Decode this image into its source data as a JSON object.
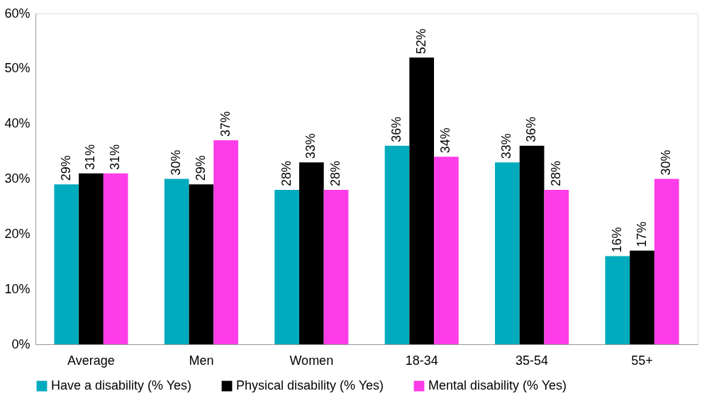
{
  "chart_data": {
    "type": "bar",
    "categories": [
      "Average",
      "Men",
      "Women",
      "18-34",
      "35-54",
      "55+"
    ],
    "series": [
      {
        "name": "Have a disability (% Yes)",
        "color": "#00abbd",
        "values": [
          29,
          30,
          28,
          36,
          33,
          16
        ],
        "value_labels": [
          "29%",
          "30%",
          "28%",
          "36%",
          "33%",
          "16%"
        ]
      },
      {
        "name": "Physical disability (% Yes)",
        "color": "#000000",
        "values": [
          31,
          29,
          33,
          52,
          36,
          17
        ],
        "value_labels": [
          "31%",
          "29%",
          "33%",
          "52%",
          "36%",
          "17%"
        ]
      },
      {
        "name": "Mental disability (% Yes)",
        "color": "#ff3de8",
        "values": [
          31,
          37,
          28,
          34,
          28,
          30
        ],
        "value_labels": [
          "31%",
          "37%",
          "28%",
          "34%",
          "28%",
          "30%"
        ]
      }
    ],
    "ylim": [
      0,
      60
    ],
    "yticks": [
      {
        "value": 0,
        "label": "0%"
      },
      {
        "value": 10,
        "label": "10%"
      },
      {
        "value": 20,
        "label": "20%"
      },
      {
        "value": 30,
        "label": "30%"
      },
      {
        "value": 40,
        "label": "40%"
      },
      {
        "value": 50,
        "label": "50%"
      },
      {
        "value": 60,
        "label": "60%"
      }
    ],
    "grid": false,
    "legend": "bottom"
  }
}
